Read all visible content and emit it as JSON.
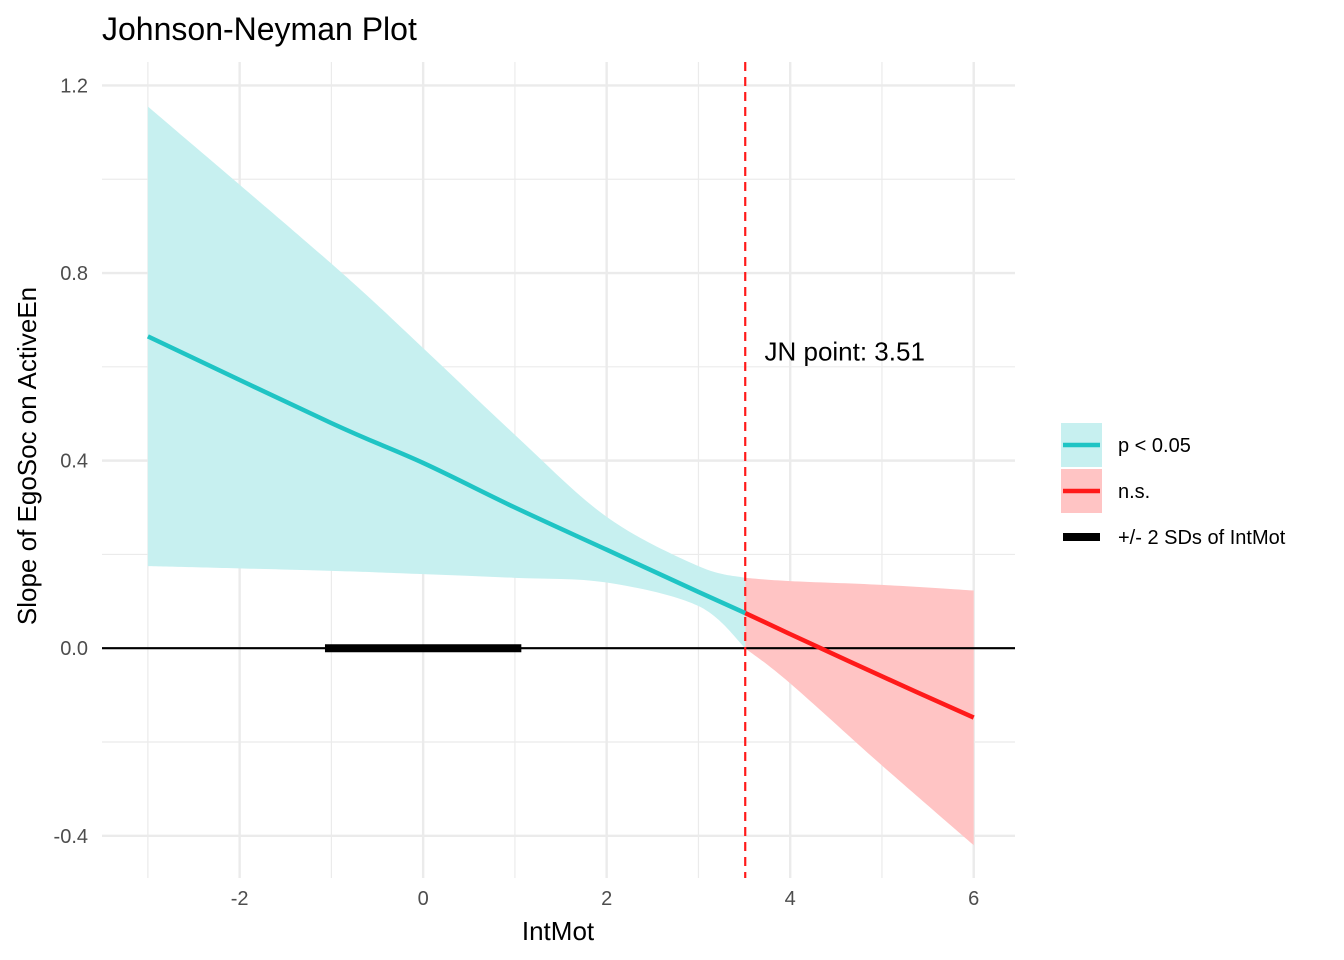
{
  "chart_data": {
    "type": "line",
    "title": "Johnson-Neyman Plot",
    "xlabel": "IntMot",
    "ylabel": "Slope of EgoSoc on ActiveEn",
    "xlim": [
      -3.5,
      6.45
    ],
    "ylim": [
      -0.49,
      1.25
    ],
    "x_ticks": [
      -2,
      0,
      2,
      4,
      6
    ],
    "x_tick_labels": [
      "-2",
      "0",
      "2",
      "4",
      "6"
    ],
    "y_ticks": [
      -0.4,
      0.0,
      0.4,
      0.8,
      1.2
    ],
    "y_tick_labels": [
      "-0.4",
      "0.0",
      "0.4",
      "0.8",
      "1.2"
    ],
    "grid": true,
    "legend_position": "right",
    "series": [
      {
        "name": "p < 0.05",
        "color": "#1fc4c4",
        "band_color": "#c7f0f0",
        "x": [
          -3.0,
          -1.0,
          0.0,
          1.0,
          2.0,
          3.0,
          3.51
        ],
        "y": [
          0.665,
          0.48,
          0.395,
          0.3,
          0.21,
          0.12,
          0.075
        ],
        "lower": [
          0.175,
          0.165,
          0.158,
          0.15,
          0.14,
          0.09,
          0.0
        ],
        "upper": [
          1.155,
          0.82,
          0.64,
          0.455,
          0.28,
          0.175,
          0.15
        ]
      },
      {
        "name": "n.s.",
        "color": "#ff1a1a",
        "band_color": "#ffc4c4",
        "x": [
          3.51,
          4.0,
          5.0,
          6.0
        ],
        "y": [
          0.075,
          0.03,
          -0.06,
          -0.148
        ],
        "lower": [
          0.0,
          -0.075,
          -0.25,
          -0.42
        ],
        "upper": [
          0.15,
          0.143,
          0.135,
          0.123
        ]
      },
      {
        "name": "+/- 2 SDs of IntMot",
        "color": "#000000",
        "x": [
          -1.07,
          1.07
        ],
        "y": [
          0.0,
          0.0
        ]
      }
    ],
    "reference_lines": [
      {
        "axis": "y",
        "value": 0.0,
        "color": "#000000",
        "style": "solid"
      },
      {
        "axis": "x",
        "value": 3.51,
        "color": "#ff1a1a",
        "style": "dashed"
      }
    ],
    "annotation": {
      "text": "JN point: 3.51",
      "x": 3.72,
      "y": 0.635
    }
  }
}
